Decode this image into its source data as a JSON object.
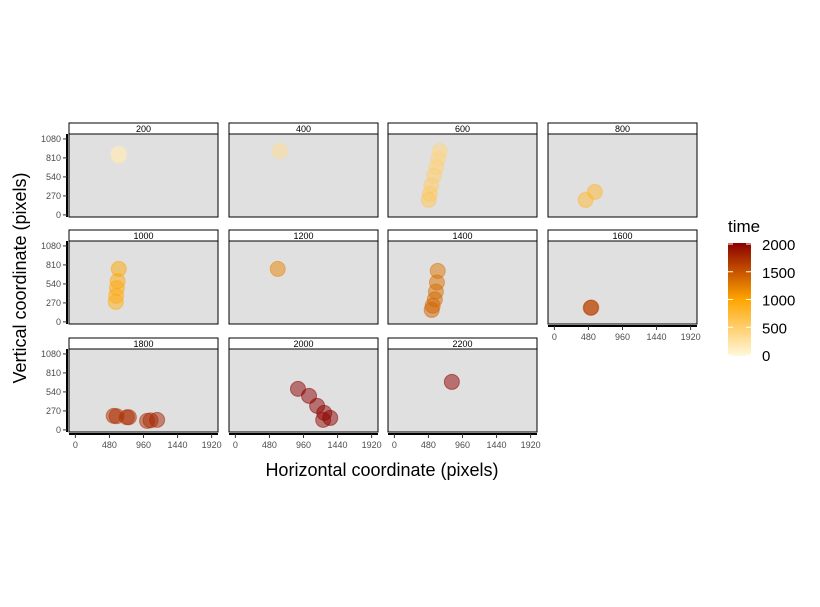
{
  "chart_data": {
    "type": "scatter",
    "xlabel": "Horizontal coordinate (pixels)",
    "ylabel": "Vertical coordinate (pixels)",
    "xlim": [
      -90,
      2010
    ],
    "ylim": [
      -30,
      1150
    ],
    "x_ticks": [
      0,
      480,
      960,
      1440,
      1920
    ],
    "y_ticks": [
      0,
      270,
      540,
      810,
      1080
    ],
    "legend": {
      "title": "time",
      "position": "right",
      "ticks": [
        0,
        500,
        1000,
        1500,
        2000
      ],
      "range": [
        0,
        2000
      ],
      "colors": [
        "#FFF8DC",
        "#FFA500",
        "#8B0000"
      ]
    },
    "facets": [
      {
        "label": "200",
        "points": [
          {
            "x": 611,
            "y": 870,
            "t": 120
          },
          {
            "x": 611,
            "y": 838,
            "t": 180
          }
        ]
      },
      {
        "label": "400",
        "points": [
          {
            "x": 626,
            "y": 909,
            "t": 350
          }
        ]
      },
      {
        "label": "600",
        "points": [
          {
            "x": 640,
            "y": 910,
            "t": 420
          },
          {
            "x": 620,
            "y": 800,
            "t": 450
          },
          {
            "x": 590,
            "y": 680,
            "t": 480
          },
          {
            "x": 560,
            "y": 560,
            "t": 510
          },
          {
            "x": 520,
            "y": 420,
            "t": 540
          },
          {
            "x": 500,
            "y": 300,
            "t": 570
          },
          {
            "x": 483,
            "y": 213,
            "t": 600
          }
        ]
      },
      {
        "label": "800",
        "points": [
          {
            "x": 440,
            "y": 213,
            "t": 780
          },
          {
            "x": 570,
            "y": 327,
            "t": 800
          }
        ]
      },
      {
        "label": "1000",
        "points": [
          {
            "x": 569,
            "y": 284,
            "t": 900
          },
          {
            "x": 575,
            "y": 370,
            "t": 920
          },
          {
            "x": 585,
            "y": 480,
            "t": 940
          },
          {
            "x": 595,
            "y": 580,
            "t": 960
          },
          {
            "x": 611,
            "y": 753,
            "t": 1000
          }
        ]
      },
      {
        "label": "1200",
        "points": [
          {
            "x": 597,
            "y": 753,
            "t": 1200
          }
        ]
      },
      {
        "label": "1400",
        "points": [
          {
            "x": 611,
            "y": 725,
            "t": 1300
          },
          {
            "x": 600,
            "y": 560,
            "t": 1320
          },
          {
            "x": 585,
            "y": 430,
            "t": 1340
          },
          {
            "x": 570,
            "y": 320,
            "t": 1360
          },
          {
            "x": 540,
            "y": 230,
            "t": 1380
          },
          {
            "x": 526,
            "y": 170,
            "t": 1400
          }
        ]
      },
      {
        "label": "1600",
        "points": [
          {
            "x": 512,
            "y": 200,
            "t": 1580
          },
          {
            "x": 520,
            "y": 205,
            "t": 1600
          }
        ]
      },
      {
        "label": "1800",
        "points": [
          {
            "x": 540,
            "y": 199,
            "t": 1700
          },
          {
            "x": 580,
            "y": 195,
            "t": 1710
          },
          {
            "x": 725,
            "y": 180,
            "t": 1720
          },
          {
            "x": 754,
            "y": 180,
            "t": 1730
          },
          {
            "x": 1010,
            "y": 128,
            "t": 1740
          },
          {
            "x": 1060,
            "y": 135,
            "t": 1750
          },
          {
            "x": 1152,
            "y": 142,
            "t": 1800
          }
        ]
      },
      {
        "label": "2000",
        "points": [
          {
            "x": 882,
            "y": 583,
            "t": 2000
          },
          {
            "x": 1038,
            "y": 484,
            "t": 2000
          },
          {
            "x": 1152,
            "y": 341,
            "t": 2000
          },
          {
            "x": 1252,
            "y": 242,
            "t": 2000
          },
          {
            "x": 1237,
            "y": 142,
            "t": 1950
          },
          {
            "x": 1337,
            "y": 170,
            "t": 2000
          }
        ]
      },
      {
        "label": "2200",
        "points": [
          {
            "x": 810,
            "y": 682,
            "t": 2100
          }
        ]
      }
    ]
  }
}
